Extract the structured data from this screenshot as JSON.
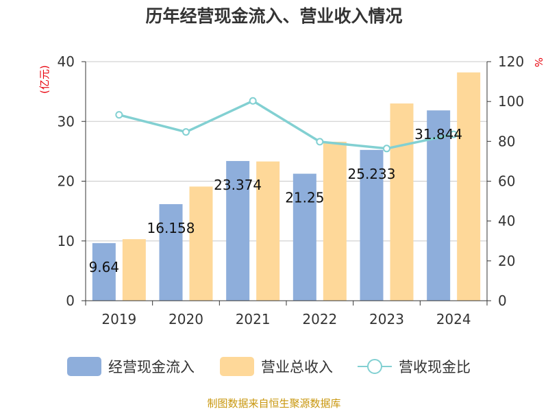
{
  "chart_data": {
    "type": "bar",
    "title": "历年经营现金流入、营业收入情况",
    "categories": [
      "2019",
      "2020",
      "2021",
      "2022",
      "2023",
      "2024"
    ],
    "series": [
      {
        "name": "经营现金流入",
        "type": "bar",
        "axis": "left",
        "color": "#8eaedb",
        "values": [
          9.64,
          16.158,
          23.374,
          21.25,
          25.233,
          31.844
        ],
        "labels": [
          "9.64",
          "16.158",
          "23.374",
          "21.25",
          "25.233",
          "31.844"
        ]
      },
      {
        "name": "营业总收入",
        "type": "bar",
        "axis": "left",
        "color": "#fed899",
        "values": [
          10.3,
          19.1,
          23.3,
          26.6,
          33.0,
          38.2
        ]
      },
      {
        "name": "营收现金比",
        "type": "line",
        "axis": "right",
        "color": "#82d0d2",
        "values": [
          93.3,
          84.7,
          100.3,
          79.8,
          76.4,
          83.5
        ]
      }
    ],
    "y_left": {
      "label": "(亿元)",
      "ylim": [
        0,
        40
      ],
      "ticks": [
        "0",
        "10",
        "20",
        "30",
        "40"
      ]
    },
    "y_right": {
      "label": "%",
      "ylim": [
        0,
        120
      ],
      "ticks": [
        "0",
        "20",
        "40",
        "60",
        "80",
        "100",
        "120"
      ]
    },
    "grid": true,
    "legend": "bottom"
  },
  "source": "制图数据来自恒生聚源数据库"
}
